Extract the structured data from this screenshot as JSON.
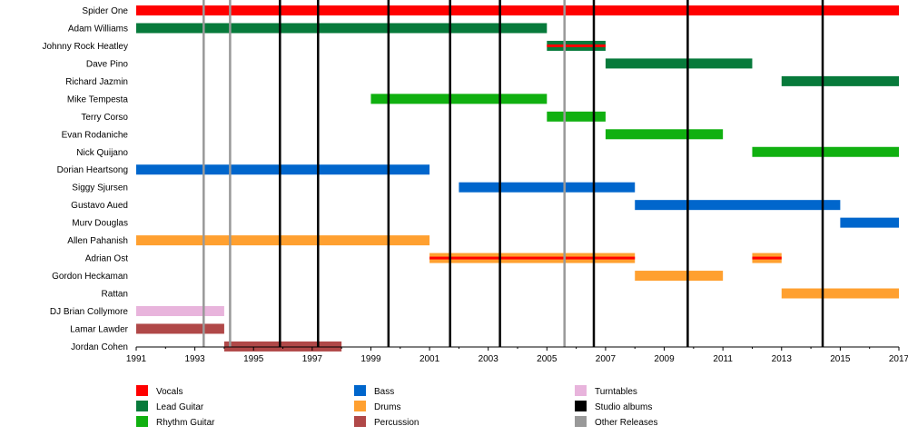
{
  "chart_data": {
    "type": "bar",
    "title": "",
    "xlabel": "",
    "ylabel": "",
    "xlim": [
      1991,
      2017
    ],
    "x_ticks": [
      "1991",
      "1993",
      "1995",
      "1997",
      "1999",
      "2001",
      "2003",
      "2005",
      "2007",
      "2009",
      "2011",
      "2013",
      "2015",
      "2017"
    ],
    "members": [
      {
        "name": "Spider One",
        "bars": [
          {
            "start": 1991.0,
            "end": 2017.0,
            "role": "Vocals"
          }
        ]
      },
      {
        "name": "Adam Williams",
        "bars": [
          {
            "start": 1991.0,
            "end": 2005.0,
            "role": "Lead Guitar"
          }
        ]
      },
      {
        "name": "Johnny Rock Heatley",
        "bars": [
          {
            "start": 2005.0,
            "end": 2007.0,
            "role": "Lead Guitar"
          },
          {
            "start": 2005.0,
            "end": 2007.0,
            "role": "Vocals",
            "secondary": true
          }
        ]
      },
      {
        "name": "Dave Pino",
        "bars": [
          {
            "start": 2007.0,
            "end": 2012.0,
            "role": "Lead Guitar"
          }
        ]
      },
      {
        "name": "Richard Jazmin",
        "bars": [
          {
            "start": 2013.0,
            "end": 2017.0,
            "role": "Lead Guitar"
          }
        ]
      },
      {
        "name": "Mike Tempesta",
        "bars": [
          {
            "start": 1999.0,
            "end": 2005.0,
            "role": "Rhythm Guitar"
          }
        ]
      },
      {
        "name": "Terry Corso",
        "bars": [
          {
            "start": 2005.0,
            "end": 2007.0,
            "role": "Rhythm Guitar"
          }
        ]
      },
      {
        "name": "Evan Rodaniche",
        "bars": [
          {
            "start": 2007.0,
            "end": 2011.0,
            "role": "Rhythm Guitar"
          }
        ]
      },
      {
        "name": "Nick Quijano",
        "bars": [
          {
            "start": 2012.0,
            "end": 2017.0,
            "role": "Rhythm Guitar"
          }
        ]
      },
      {
        "name": "Dorian Heartsong",
        "bars": [
          {
            "start": 1991.0,
            "end": 2001.0,
            "role": "Bass"
          }
        ]
      },
      {
        "name": "Siggy Sjursen",
        "bars": [
          {
            "start": 2002.0,
            "end": 2008.0,
            "role": "Bass"
          }
        ]
      },
      {
        "name": "Gustavo Aued",
        "bars": [
          {
            "start": 2008.0,
            "end": 2015.0,
            "role": "Bass"
          }
        ]
      },
      {
        "name": "Murv Douglas",
        "bars": [
          {
            "start": 2015.0,
            "end": 2017.0,
            "role": "Bass"
          }
        ]
      },
      {
        "name": "Allen Pahanish",
        "bars": [
          {
            "start": 1991.0,
            "end": 2001.0,
            "role": "Drums"
          }
        ]
      },
      {
        "name": "Adrian Ost",
        "bars": [
          {
            "start": 2001.0,
            "end": 2008.0,
            "role": "Drums"
          },
          {
            "start": 2001.0,
            "end": 2008.0,
            "role": "Vocals",
            "secondary": true
          },
          {
            "start": 2012.0,
            "end": 2013.0,
            "role": "Drums"
          },
          {
            "start": 2012.0,
            "end": 2013.0,
            "role": "Vocals",
            "secondary": true
          }
        ]
      },
      {
        "name": "Gordon Heckaman",
        "bars": [
          {
            "start": 2008.0,
            "end": 2011.0,
            "role": "Drums"
          }
        ]
      },
      {
        "name": "Rattan",
        "bars": [
          {
            "start": 2013.0,
            "end": 2017.0,
            "role": "Drums"
          }
        ]
      },
      {
        "name": "DJ Brian Collymore",
        "bars": [
          {
            "start": 1991.0,
            "end": 1994.0,
            "role": "Turntables"
          }
        ]
      },
      {
        "name": "Lamar Lawder",
        "bars": [
          {
            "start": 1991.0,
            "end": 1994.0,
            "role": "Percussion"
          }
        ]
      },
      {
        "name": "Jordan Cohen",
        "bars": [
          {
            "start": 1994.0,
            "end": 1998.0,
            "role": "Percussion"
          }
        ]
      }
    ],
    "release_lines": [
      {
        "year": 1993.3,
        "kind": "Other Releases"
      },
      {
        "year": 1994.2,
        "kind": "Other Releases"
      },
      {
        "year": 1995.9,
        "kind": "Studio albums"
      },
      {
        "year": 1997.2,
        "kind": "Studio albums"
      },
      {
        "year": 1999.6,
        "kind": "Studio albums"
      },
      {
        "year": 2001.7,
        "kind": "Studio albums"
      },
      {
        "year": 2003.4,
        "kind": "Studio albums"
      },
      {
        "year": 2005.6,
        "kind": "Other Releases"
      },
      {
        "year": 2006.6,
        "kind": "Studio albums"
      },
      {
        "year": 2009.8,
        "kind": "Studio albums"
      },
      {
        "year": 2014.4,
        "kind": "Studio albums"
      }
    ],
    "legend": [
      {
        "label": "Vocals",
        "color": "#ff0000"
      },
      {
        "label": "Bass",
        "color": "#0066cc"
      },
      {
        "label": "Turntables",
        "color": "#e8b4dc"
      },
      {
        "label": "Lead Guitar",
        "color": "#077a3b"
      },
      {
        "label": "Drums",
        "color": "#ffa030"
      },
      {
        "label": "Studio albums",
        "color": "#000000"
      },
      {
        "label": "Rhythm Guitar",
        "color": "#10b010"
      },
      {
        "label": "Percussion",
        "color": "#b04848"
      },
      {
        "label": "Other Releases",
        "color": "#999999"
      }
    ],
    "legend_placement": "bottom",
    "grid": false
  }
}
